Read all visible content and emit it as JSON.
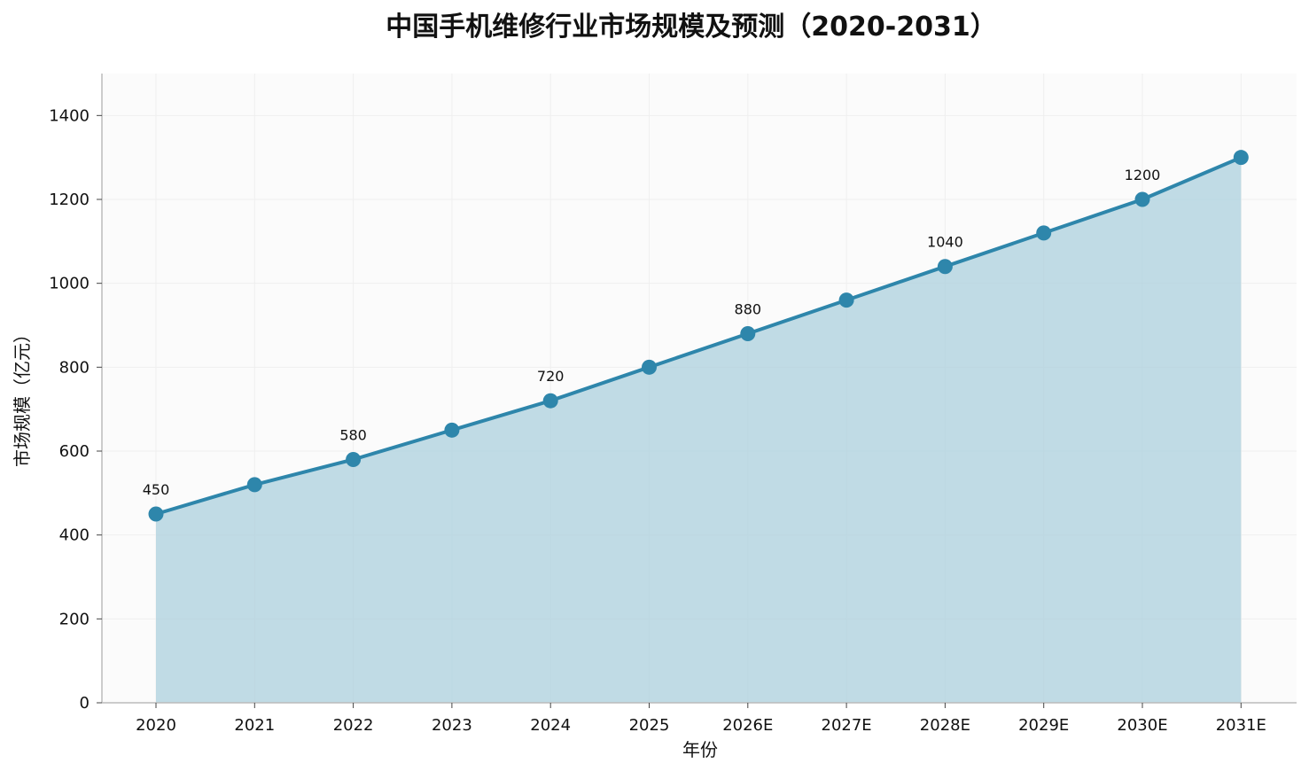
{
  "chart_data": {
    "type": "area",
    "title": "中国手机维修行业市场规模及预测（2020-2031）",
    "xlabel": "年份",
    "ylabel": "市场规模（亿元）",
    "categories": [
      "2020",
      "2021",
      "2022",
      "2023",
      "2024",
      "2025",
      "2026E",
      "2027E",
      "2028E",
      "2029E",
      "2030E",
      "2031E"
    ],
    "values": [
      450,
      520,
      580,
      650,
      720,
      800,
      880,
      960,
      1040,
      1120,
      1200,
      1300
    ],
    "ylim": [
      0,
      1500
    ],
    "yticks": [
      0,
      200,
      400,
      600,
      800,
      1000,
      1200,
      1400
    ],
    "data_labels": [
      {
        "index": 0,
        "text": "450"
      },
      {
        "index": 2,
        "text": "580"
      },
      {
        "index": 4,
        "text": "720"
      },
      {
        "index": 6,
        "text": "880"
      },
      {
        "index": 8,
        "text": "1040"
      },
      {
        "index": 10,
        "text": "1200"
      }
    ],
    "grid": true,
    "legend": "none",
    "colors": {
      "line": "#2e86ab",
      "fill": "#a9cfdc",
      "plot_bg": "#fbfbfb",
      "axis": "#bbbbbb",
      "grid": "#efefef"
    }
  }
}
